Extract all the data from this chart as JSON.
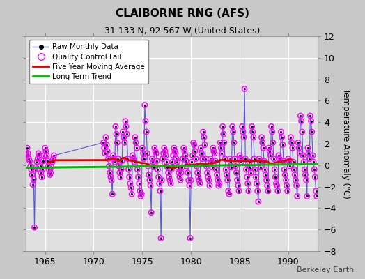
{
  "title": "CLAIBORNE RNG (AFS)",
  "subtitle": "31.133 N, 92.567 W (United States)",
  "ylabel": "Temperature Anomaly (°C)",
  "watermark": "Berkeley Earth",
  "xlim": [
    1963.0,
    1993.0
  ],
  "ylim": [
    -8,
    12
  ],
  "yticks": [
    -8,
    -6,
    -4,
    -2,
    0,
    2,
    4,
    6,
    8,
    10,
    12
  ],
  "xticks": [
    1965,
    1970,
    1975,
    1980,
    1985,
    1990
  ],
  "fig_bg_color": "#c8c8c8",
  "plot_bg_color": "#e0e0e0",
  "grid_color": "#ffffff",
  "raw_line_color": "#5555dd",
  "raw_dot_color": "#000000",
  "qc_fail_color": "#ff00ff",
  "moving_avg_color": "#dd0000",
  "trend_color": "#00bb00",
  "seed": 17,
  "anomaly_values": [
    1.2,
    0.9,
    1.6,
    1.1,
    0.6,
    0.4,
    -0.1,
    -0.4,
    -0.9,
    -1.8,
    -1.3,
    -5.8,
    -0.4,
    -0.2,
    0.3,
    0.6,
    1.1,
    0.9,
    -0.1,
    -0.7,
    -1.1,
    -0.4,
    0.4,
    0.9,
    1.6,
    1.3,
    0.9,
    0.4,
    -0.1,
    -0.4,
    -0.9,
    -0.7,
    -0.2,
    0.3,
    0.6,
    0.9,
    null,
    null,
    null,
    null,
    null,
    null,
    null,
    null,
    null,
    null,
    null,
    null,
    null,
    null,
    null,
    null,
    null,
    null,
    null,
    null,
    null,
    null,
    null,
    null,
    null,
    null,
    null,
    null,
    null,
    null,
    null,
    null,
    null,
    null,
    null,
    null,
    null,
    null,
    null,
    null,
    null,
    null,
    null,
    null,
    null,
    null,
    null,
    null,
    null,
    null,
    null,
    null,
    null,
    null,
    null,
    null,
    null,
    null,
    null,
    null,
    2.1,
    1.6,
    1.1,
    2.6,
    1.9,
    1.3,
    0.6,
    -0.1,
    -0.7,
    -1.1,
    -1.4,
    -2.7,
    0.9,
    0.6,
    0.3,
    3.6,
    2.9,
    2.1,
    0.6,
    -0.1,
    -0.7,
    -1.1,
    -0.4,
    0.4,
    3.1,
    2.6,
    2.1,
    4.1,
    3.6,
    2.9,
    0.6,
    -0.4,
    -1.1,
    -1.7,
    -2.1,
    -2.7,
    0.9,
    0.6,
    0.3,
    2.6,
    2.1,
    1.6,
    -0.4,
    -1.1,
    -1.7,
    -2.4,
    -2.9,
    -2.7,
    1.6,
    1.1,
    0.6,
    5.6,
    4.1,
    3.1,
    1.1,
    -0.1,
    -0.9,
    -1.4,
    -1.9,
    -4.4,
    0.6,
    0.3,
    -0.2,
    1.6,
    1.3,
    1.1,
    0.4,
    -0.4,
    -1.1,
    -1.7,
    -2.4,
    -6.8,
    -1.4,
    0.6,
    1.1,
    1.6,
    1.3,
    0.9,
    0.3,
    -0.2,
    -0.7,
    -1.1,
    -1.4,
    -1.7,
    -0.4,
    0.3,
    0.9,
    1.6,
    1.3,
    1.1,
    0.6,
    0.3,
    -0.2,
    -0.7,
    -1.1,
    -1.4,
    -0.7,
    -0.2,
    0.6,
    1.6,
    1.3,
    0.9,
    0.4,
    -0.1,
    -0.7,
    -1.4,
    -1.9,
    -6.8,
    -1.4,
    0.3,
    0.9,
    2.1,
    1.9,
    1.3,
    0.6,
    -0.1,
    -0.7,
    -1.1,
    -1.4,
    -1.7,
    1.6,
    1.1,
    0.6,
    3.1,
    2.6,
    1.9,
    0.6,
    -0.1,
    -0.7,
    -1.1,
    -1.4,
    -1.9,
    0.6,
    0.3,
    -0.2,
    1.6,
    1.3,
    1.1,
    0.4,
    -0.4,
    -0.9,
    -1.4,
    -1.9,
    -1.7,
    2.1,
    1.6,
    1.1,
    3.6,
    2.9,
    2.1,
    0.6,
    -0.4,
    -0.9,
    -1.4,
    -2.4,
    -2.7,
    0.6,
    0.3,
    -0.2,
    3.6,
    3.1,
    2.1,
    0.6,
    -0.1,
    -0.7,
    -1.4,
    -1.9,
    -2.4,
    0.9,
    0.6,
    0.3,
    3.6,
    3.1,
    2.6,
    7.1,
    0.6,
    -0.4,
    -1.1,
    -1.7,
    -2.4,
    0.3,
    -0.2,
    -0.7,
    3.6,
    3.1,
    2.6,
    0.6,
    -0.4,
    -1.1,
    -1.7,
    -2.4,
    -3.4,
    0.6,
    0.3,
    -0.2,
    2.6,
    2.1,
    1.6,
    0.4,
    -0.4,
    -0.9,
    -1.4,
    -1.9,
    -2.4,
    1.6,
    1.3,
    0.9,
    3.6,
    3.1,
    2.1,
    0.6,
    -0.4,
    -1.1,
    -1.7,
    -1.9,
    -2.4,
    0.9,
    0.6,
    0.3,
    3.1,
    2.6,
    1.9,
    0.4,
    -0.4,
    -0.9,
    -1.4,
    -1.9,
    -2.4,
    0.6,
    0.4,
    -0.1,
    2.6,
    2.1,
    1.6,
    0.3,
    -0.4,
    -0.9,
    -1.4,
    -1.9,
    -2.9,
    2.1,
    1.6,
    1.1,
    4.6,
    4.1,
    3.1,
    0.9,
    0.3,
    -0.4,
    -0.9,
    -1.4,
    -2.9,
    1.6,
    1.1,
    0.6,
    4.6,
    4.1,
    3.1,
    0.9,
    0.3,
    -0.4,
    -1.1,
    -2.4,
    -2.9,
    0.6,
    0.3,
    -0.2,
    2.1,
    1.6,
    1.1,
    0.4,
    -0.4,
    -0.9,
    -1.4,
    -1.9,
    -2.4
  ],
  "qc_fail_mask": [
    1,
    1,
    1,
    1,
    1,
    1,
    1,
    1,
    1,
    1,
    1,
    1,
    1,
    1,
    1,
    1,
    1,
    1,
    1,
    1,
    1,
    1,
    1,
    1,
    1,
    1,
    1,
    1,
    1,
    1,
    1,
    1,
    1,
    1,
    1,
    1,
    0,
    0,
    0,
    0,
    0,
    0,
    0,
    0,
    0,
    0,
    0,
    0,
    0,
    0,
    0,
    0,
    0,
    0,
    0,
    0,
    0,
    0,
    0,
    0,
    0,
    0,
    0,
    0,
    0,
    0,
    0,
    0,
    0,
    0,
    0,
    0,
    0,
    0,
    0,
    0,
    0,
    0,
    0,
    0,
    0,
    0,
    0,
    0,
    0,
    0,
    0,
    0,
    0,
    0,
    0,
    0,
    0,
    0,
    0,
    0,
    1,
    1,
    1,
    1,
    1,
    1,
    1,
    1,
    1,
    1,
    1,
    1,
    1,
    1,
    1,
    1,
    1,
    1,
    1,
    1,
    1,
    1,
    1,
    1,
    1,
    1,
    1,
    1,
    1,
    1,
    1,
    1,
    1,
    1,
    1,
    1,
    1,
    1,
    1,
    1,
    1,
    1,
    1,
    1,
    1,
    1,
    1,
    1,
    1,
    1,
    1,
    1,
    1,
    1,
    1,
    1,
    1,
    1,
    1,
    1,
    1,
    1,
    1,
    1,
    1,
    1,
    1,
    1,
    1,
    1,
    1,
    1,
    1,
    1,
    1,
    1,
    1,
    1,
    1,
    1,
    1,
    1,
    1,
    1,
    1,
    1,
    1,
    1,
    1,
    1,
    1,
    1,
    1,
    1,
    1,
    1,
    1,
    1,
    1,
    1,
    1,
    1,
    1,
    1,
    1,
    1,
    1,
    1,
    1,
    1,
    1,
    1,
    1,
    1,
    1,
    1,
    1,
    1,
    1,
    1,
    1,
    1,
    1,
    1,
    1,
    1,
    1,
    1,
    1,
    1,
    1,
    1,
    1,
    1,
    1,
    1,
    1,
    1,
    1,
    1,
    1,
    1,
    1,
    1,
    1,
    1,
    1,
    1,
    1,
    1,
    1,
    1,
    1,
    1,
    1,
    1,
    1,
    1,
    1,
    1,
    1,
    1,
    1,
    1,
    1,
    1,
    1,
    1,
    1,
    1,
    1,
    1,
    1,
    1,
    1,
    1,
    1,
    1,
    1,
    1,
    1,
    1,
    1,
    1,
    1,
    1,
    1,
    1,
    1,
    1,
    1,
    1,
    1,
    1,
    1,
    1,
    1,
    1,
    1,
    1,
    1,
    1,
    1,
    1,
    1,
    1,
    1,
    1,
    1,
    1,
    1,
    1,
    1,
    1,
    1,
    1,
    1,
    1,
    1,
    1,
    1,
    1,
    1,
    1,
    1,
    1,
    1,
    1,
    1,
    1,
    1,
    1,
    1,
    1,
    1,
    1,
    1,
    1,
    1,
    1,
    1,
    1,
    1,
    1,
    1,
    1,
    1,
    1,
    1,
    1,
    1,
    1,
    1,
    1,
    1,
    1,
    1,
    1,
    1,
    1,
    1,
    1,
    1,
    1
  ],
  "trend_x": [
    1963.0,
    1993.0
  ],
  "trend_y": [
    -0.25,
    0.1
  ]
}
